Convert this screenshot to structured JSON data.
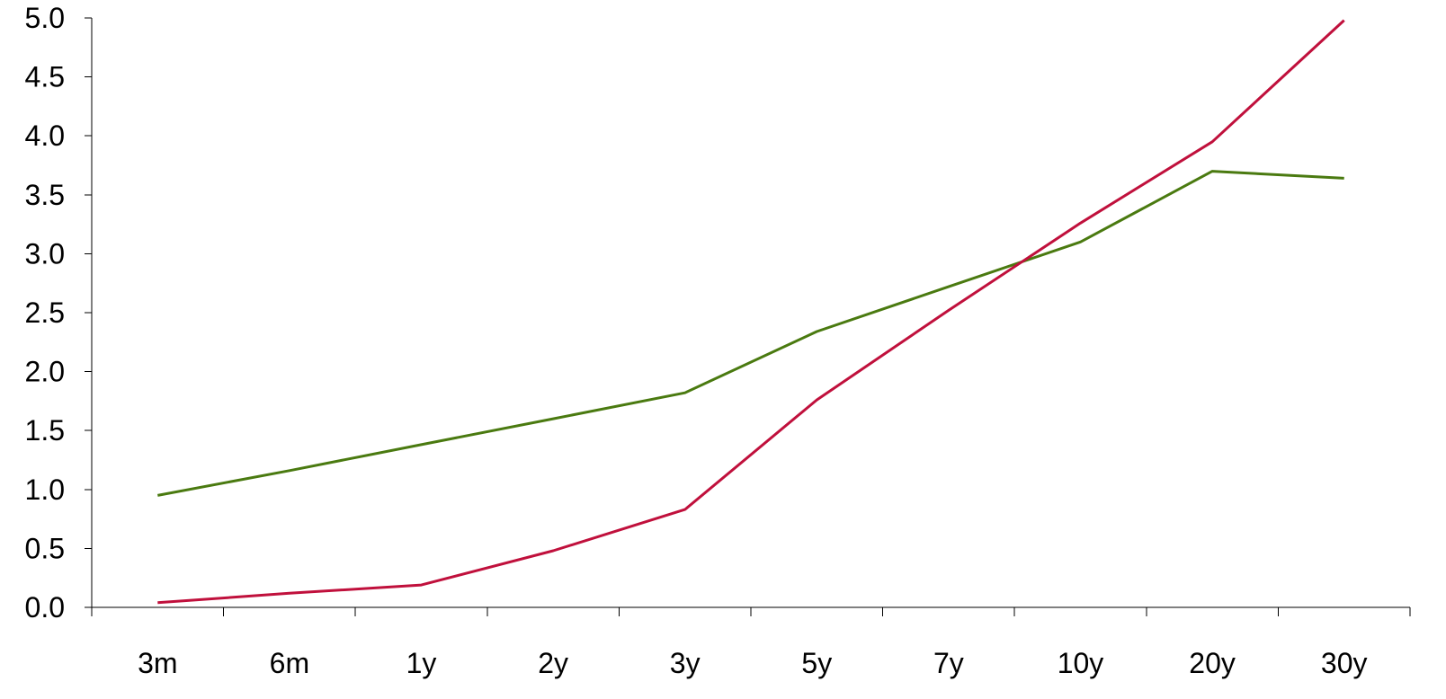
{
  "chart_data": {
    "type": "line",
    "title": "",
    "xlabel": "",
    "ylabel": "",
    "categories": [
      "3m",
      "6m",
      "1y",
      "2y",
      "3y",
      "5y",
      "7y",
      "10y",
      "20y",
      "30y"
    ],
    "ylim": [
      0,
      5
    ],
    "yticks": [
      "0.0",
      "0.5",
      "1.0",
      "1.5",
      "2.0",
      "2.5",
      "3.0",
      "3.5",
      "4.0",
      "4.5",
      "5.0"
    ],
    "grid": false,
    "legend": "none",
    "series": [
      {
        "color": "#4a7a10",
        "values": [
          0.95,
          1.16,
          1.38,
          1.6,
          1.82,
          2.34,
          2.72,
          3.1,
          3.7,
          3.64
        ]
      },
      {
        "color": "#c0103c",
        "values": [
          0.04,
          0.12,
          0.19,
          0.48,
          0.83,
          1.76,
          2.52,
          3.26,
          3.95,
          4.98
        ]
      }
    ]
  }
}
